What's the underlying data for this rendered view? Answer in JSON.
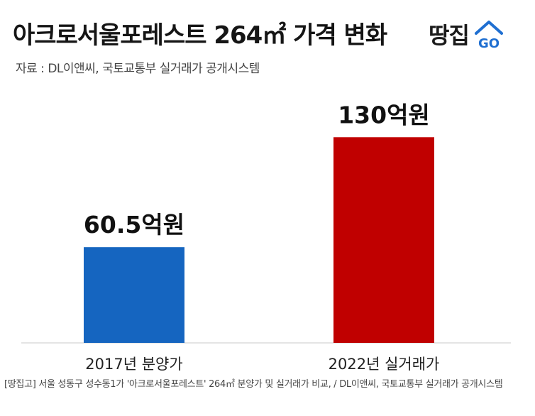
{
  "header": {
    "title": "아크로서울포레스트 264㎡ 가격 변화",
    "source": "자료 : DL이앤씨, 국토교통부 실거래가 공개시스템",
    "logo_text": "땅집",
    "logo_icon": "house-go-icon",
    "logo_icon_text": "GO",
    "logo_color": "#1f6fd1"
  },
  "chart_data": {
    "type": "bar",
    "categories": [
      "2017년 분양가",
      "2022년 실거래가"
    ],
    "values": [
      60.5,
      130
    ],
    "data_labels": [
      "60.5억원",
      "130억원"
    ],
    "unit": "억원",
    "colors": [
      "#1565c0",
      "#c00000"
    ],
    "ylim": [
      0,
      140
    ],
    "grid": false
  },
  "caption": "[땅집고] 서울 성동구 성수동1가 '아크로서울포레스트' 264㎡ 분양가 및 실거래가 비교, / DL이앤씨, 국토교통부 실거래가 공개시스템"
}
